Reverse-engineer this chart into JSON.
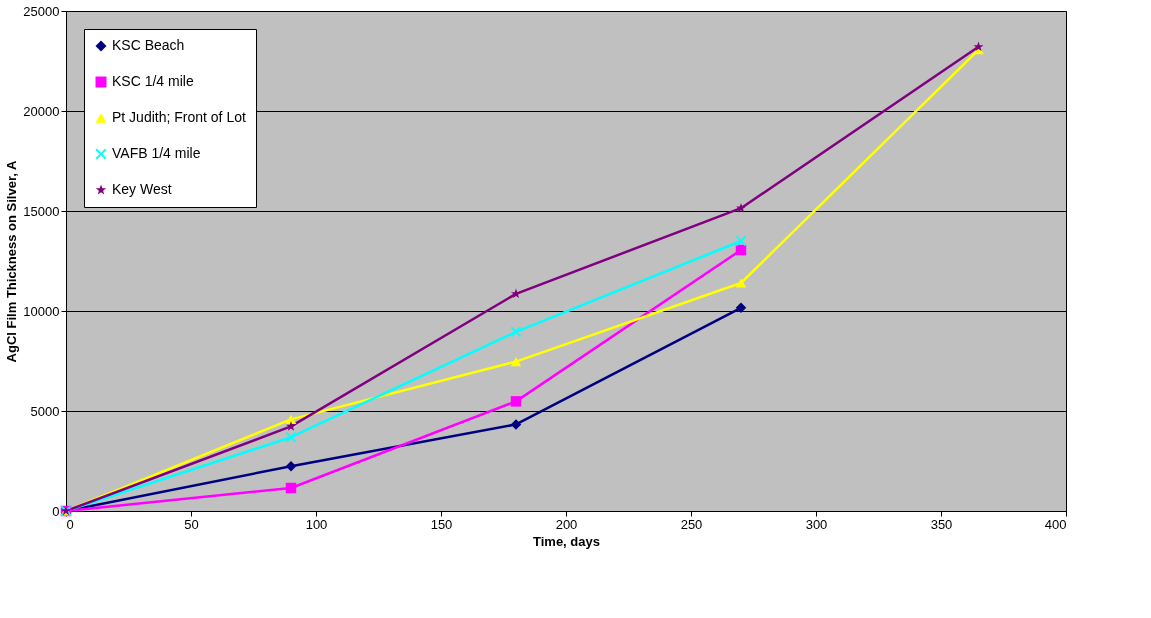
{
  "chart_data": {
    "type": "line",
    "xlabel": "Time, days",
    "ylabel": "AgCl Film Thickness on Silver, A",
    "xlim": [
      0,
      400
    ],
    "xticks": [
      0,
      50,
      100,
      150,
      200,
      250,
      300,
      350,
      400
    ],
    "ylim": [
      0,
      25000
    ],
    "yticks": [
      0,
      5000,
      10000,
      15000,
      20000,
      25000
    ],
    "grid": "y",
    "legend": "top left",
    "series": [
      {
        "name": "KSC Beach",
        "color": "#000080",
        "marker": "diamond",
        "x": [
          0,
          90,
          180,
          270
        ],
        "values": [
          0,
          2240,
          4330,
          10160
        ]
      },
      {
        "name": "KSC 1/4 mile",
        "color": "#ff00ff",
        "marker": "square",
        "x": [
          0,
          90,
          180,
          270
        ],
        "values": [
          0,
          1150,
          5480,
          13050
        ]
      },
      {
        "name": "Pt Judith; Front of Lot",
        "color": "#ffff00",
        "marker": "triangle",
        "x": [
          0,
          90,
          180,
          270,
          365
        ],
        "values": [
          0,
          4580,
          7470,
          11400,
          23060
        ]
      },
      {
        "name": "VAFB 1/4 mile",
        "color": "#00ffff",
        "marker": "cross",
        "x": [
          0,
          90,
          180,
          270
        ],
        "values": [
          0,
          3690,
          8960,
          13500
        ]
      },
      {
        "name": "Key West",
        "color": "#800080",
        "marker": "star",
        "x": [
          0,
          90,
          180,
          270,
          365
        ],
        "values": [
          0,
          4230,
          10860,
          15140,
          23210
        ]
      }
    ]
  }
}
